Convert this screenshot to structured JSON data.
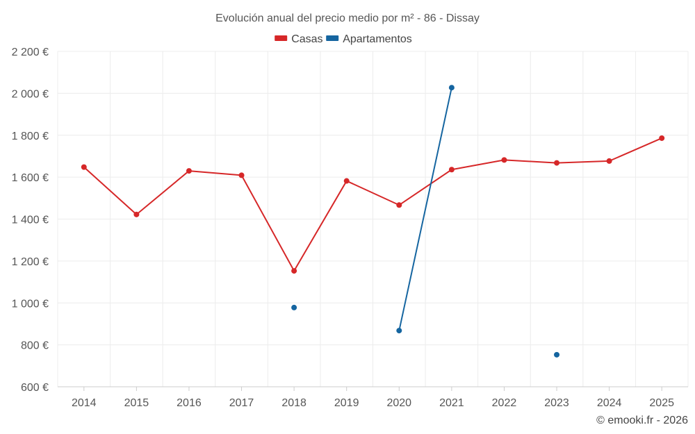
{
  "chart_data": {
    "type": "line",
    "title": "Evolución anual del precio medio por m² - 86 - Dissay",
    "categories": [
      "2014",
      "2015",
      "2016",
      "2017",
      "2018",
      "2019",
      "2020",
      "2021",
      "2022",
      "2023",
      "2024",
      "2025"
    ],
    "ylim": [
      600,
      2200
    ],
    "yticks": [
      600,
      800,
      1000,
      1200,
      1400,
      1600,
      1800,
      2000,
      2200
    ],
    "ytick_labels": [
      "600 €",
      "800 €",
      "1 000 €",
      "1 200 €",
      "1 400 €",
      "1 600 €",
      "1 800 €",
      "2 000 €",
      "2 200 €"
    ],
    "grid": true,
    "legend_position": "top-center",
    "series": [
      {
        "name": "Casas",
        "color": "#d62728",
        "values": [
          1648,
          1422,
          1630,
          1609,
          1153,
          1582,
          1467,
          1636,
          1682,
          1668,
          1677,
          1786
        ]
      },
      {
        "name": "Apartamentos",
        "color": "#1565a0",
        "values": [
          null,
          null,
          null,
          null,
          978,
          null,
          868,
          2027,
          null,
          753,
          null,
          null
        ]
      }
    ]
  },
  "credit": "© emooki.fr - 2026"
}
